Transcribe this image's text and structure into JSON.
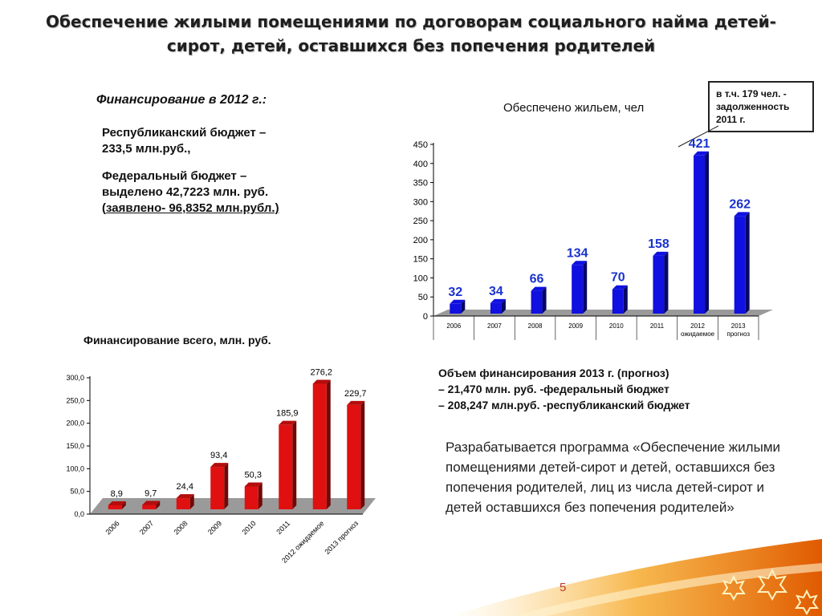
{
  "slide": {
    "title": "Обеспечение жилыми помещениями по договорам социального найма детей-\nсирот, детей, оставшихся без попечения родителей",
    "financing_heading": "Финансирование в 2012 г.:",
    "republican_budget": "Республиканский бюджет –233,5 млн.руб.,",
    "federal_budget": "Федеральный бюджет – выделено 42,7223 млн. руб. (",
    "federal_declared": "заявлено- 96,8352 млн.рубл.)",
    "callout": "в т.ч. 179 чел. - задолженность 2011 г.",
    "volume_2013": {
      "heading": "Объем финансирования 2013 г. (прогноз)",
      "line1": "– 21,470 млн. руб. -федеральный бюджет",
      "line2": "– 208,247 млн.руб. -республиканский бюджет"
    },
    "program_text": "Разрабатывается программа «Обеспечение жилыми помещениями детей-сирот и детей, оставшихся без попечения родителей, лиц из числа детей-сирот и детей оставшихся без попечения родителей»",
    "page_number": "5"
  },
  "colors": {
    "chart1_bar": "#1010e0",
    "chart1_label": "#1a33cc",
    "chart2_bar": "#e01010",
    "page_number": "#c0392b"
  },
  "chart_data": [
    {
      "type": "bar",
      "title": "Обеспечено жильем, чел",
      "categories": [
        "2006",
        "2007",
        "2008",
        "2009",
        "2010",
        "2011",
        "2012 ожидаемое",
        "2013 прогноз"
      ],
      "category_lines": [
        [
          "2006"
        ],
        [
          "2007"
        ],
        [
          "2008"
        ],
        [
          "2009"
        ],
        [
          "2010"
        ],
        [
          "2011"
        ],
        [
          "2012",
          "ожидаемое"
        ],
        [
          "2013",
          "прогноз"
        ]
      ],
      "values": [
        32,
        34,
        66,
        134,
        70,
        158,
        421,
        262
      ],
      "value_labels": [
        "32",
        "34",
        "66",
        "134",
        "70",
        "158",
        "421",
        "262"
      ],
      "yticks": [
        0,
        50,
        100,
        150,
        200,
        250,
        300,
        350,
        400,
        450
      ],
      "ytick_labels": [
        "0",
        "50",
        "100",
        "150",
        "200",
        "250",
        "300",
        "350",
        "400",
        "450"
      ],
      "ylim": [
        0,
        450
      ],
      "grid": false,
      "style": "3d"
    },
    {
      "type": "bar",
      "title": "Финансирование всего, млн. руб.",
      "categories": [
        "2006",
        "2007",
        "2008",
        "2009",
        "2010",
        "2011",
        "2012 ожидаемое",
        "2013 прогноз"
      ],
      "values": [
        8.9,
        9.7,
        24.4,
        93.4,
        50.3,
        185.9,
        276.2,
        229.7
      ],
      "value_labels": [
        "8,9",
        "9,7",
        "24,4",
        "93,4",
        "50,3",
        "185,9",
        "276,2",
        "229,7"
      ],
      "yticks": [
        0,
        50,
        100,
        150,
        200,
        250,
        300
      ],
      "ytick_labels": [
        "0,0",
        "50,0",
        "100,0",
        "150,0",
        "200,0",
        "250,0",
        "300,0"
      ],
      "ylim": [
        0,
        300
      ],
      "grid": false,
      "style": "3d",
      "xtick_rotation": -45
    }
  ]
}
